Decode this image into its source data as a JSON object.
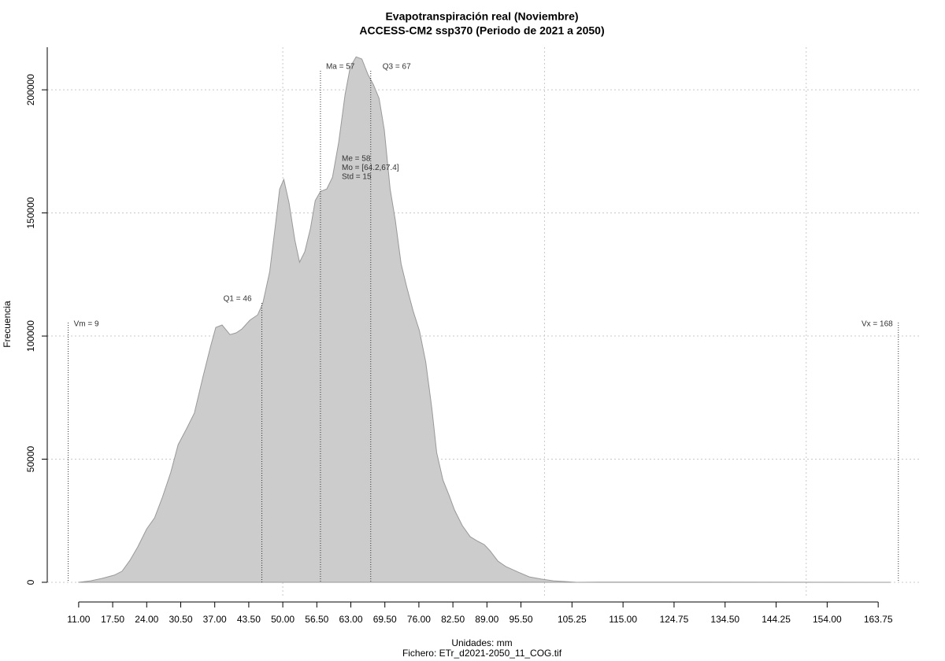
{
  "chart_data": {
    "type": "area",
    "title": "Evapotranspiración real (Noviembre)",
    "subtitle": "ACCESS-CM2 ssp370 (Periodo de 2021 a 2050)",
    "x_label": "Unidades: mm",
    "caption": "Fichero: ETr_d2021-2050_11_COG.tif",
    "y_label": "Frecuencia",
    "color": "#cccccc",
    "edge_color": "#999999",
    "x": [
      11,
      13.3,
      15.5,
      17.8,
      19.3,
      20.8,
      22.3,
      24,
      25.5,
      27,
      28.6,
      30,
      31.6,
      33.1,
      34.7,
      36.2,
      37.2,
      38.4,
      39.9,
      41.1,
      42.2,
      43.7,
      45.2,
      46.2,
      47.5,
      48.7,
      49.4,
      50.2,
      51.2,
      52.3,
      53.2,
      54.2,
      55.3,
      56.2,
      57.2,
      58.4,
      59.5,
      60.7,
      61.9,
      62.9,
      64,
      65.1,
      66.3,
      67.3,
      68.4,
      69.4,
      70.5,
      71.5,
      72.6,
      73.7,
      74.9,
      76.1,
      77.3,
      78.5,
      79.4,
      80.6,
      81.8,
      82.8,
      84.3,
      85.8,
      87.3,
      88.5,
      89.6,
      91.1,
      92.6,
      94.9,
      97.1,
      99.4,
      101.7,
      103.9,
      106.2,
      110.3,
      131.4,
      166
    ],
    "values": [
      0,
      600,
      1600,
      2900,
      4500,
      8900,
      14400,
      21700,
      26200,
      34500,
      44700,
      55900,
      62300,
      68700,
      83000,
      95800,
      103500,
      104500,
      100600,
      101300,
      102900,
      106400,
      108600,
      113400,
      126200,
      147000,
      159700,
      163600,
      154000,
      139000,
      130000,
      134200,
      143800,
      155000,
      158800,
      159700,
      164500,
      178900,
      198100,
      209300,
      213400,
      212500,
      206100,
      202200,
      196500,
      183700,
      159700,
      147000,
      129400,
      119800,
      110200,
      102200,
      89500,
      70300,
      52700,
      41500,
      35100,
      29400,
      23000,
      18500,
      16600,
      15300,
      12800,
      8600,
      6400,
      4200,
      2200,
      1300,
      600,
      300,
      0,
      100,
      50,
      0
    ],
    "xlim": [
      5,
      172
    ],
    "ylim": [
      -6400,
      217300
    ],
    "xticks": [
      {
        "value": 11,
        "label": "11.00"
      },
      {
        "value": 17.5,
        "label": "17.50"
      },
      {
        "value": 24,
        "label": "24.00"
      },
      {
        "value": 30.5,
        "label": "30.50"
      },
      {
        "value": 37,
        "label": "37.00"
      },
      {
        "value": 43.5,
        "label": "43.50"
      },
      {
        "value": 50,
        "label": "50.00"
      },
      {
        "value": 56.5,
        "label": "56.50"
      },
      {
        "value": 63,
        "label": "63.00"
      },
      {
        "value": 69.5,
        "label": "69.50"
      },
      {
        "value": 76,
        "label": "76.00"
      },
      {
        "value": 82.5,
        "label": "82.50"
      },
      {
        "value": 89,
        "label": "89.00"
      },
      {
        "value": 95.5,
        "label": "95.50"
      },
      {
        "value": 105.25,
        "label": "105.25"
      },
      {
        "value": 115,
        "label": "115.00"
      },
      {
        "value": 124.75,
        "label": "124.75"
      },
      {
        "value": 134.5,
        "label": "134.50"
      },
      {
        "value": 144.25,
        "label": "144.25"
      },
      {
        "value": 154,
        "label": "154.00"
      },
      {
        "value": 163.75,
        "label": "163.75"
      }
    ],
    "xgrid": [
      50,
      100,
      150
    ],
    "yticks": [
      0,
      50000,
      100000,
      150000,
      200000
    ],
    "grid": true,
    "stat_lines": [
      {
        "label": "Vm = 9",
        "value": 9
      },
      {
        "label": "Q1 = 46",
        "value": 46
      },
      {
        "label": "Ma = 57",
        "value": 57.2
      },
      {
        "label": "Q3 = 67",
        "value": 66.8
      },
      {
        "label": "Vx = 168",
        "value": 167.6
      }
    ],
    "stat_notes": [
      "Me = 58",
      "Mo = [64.2,67.4]",
      "Std = 15"
    ]
  }
}
